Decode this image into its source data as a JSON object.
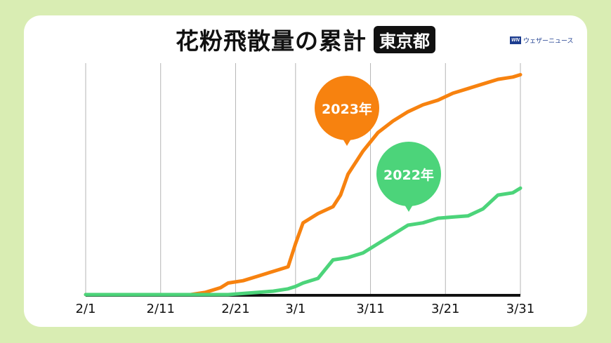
{
  "title": "花粉飛散量の累計",
  "region_badge": "東京都",
  "logo": {
    "mark": "WN",
    "text": "ウェザーニュース"
  },
  "colors": {
    "background": "#d9edb3",
    "series_2023": "#f7820f",
    "series_2022": "#4cd47a",
    "axis": "#111111",
    "grid": "#b5b5b5"
  },
  "labels": {
    "series_2023": "2023年",
    "series_2022": "2022年"
  },
  "chart_data": {
    "type": "line",
    "title": "花粉飛散量の累計 東京都",
    "xlabel": "",
    "ylabel": "",
    "y_unit": "relative cumulative amount (0-100, no axis shown)",
    "grid": "vertical only",
    "legend": "callout bubbles",
    "x_ticks": [
      "2/1",
      "2/11",
      "2/21",
      "3/1",
      "3/11",
      "3/21",
      "3/31"
    ],
    "x": [
      "2/1",
      "2/5",
      "2/10",
      "2/15",
      "2/17",
      "2/19",
      "2/20",
      "2/22",
      "2/24",
      "2/26",
      "2/28",
      "3/1",
      "3/2",
      "3/4",
      "3/6",
      "3/7",
      "3/8",
      "3/10",
      "3/12",
      "3/14",
      "3/16",
      "3/18",
      "3/20",
      "3/22",
      "3/24",
      "3/26",
      "3/28",
      "3/30",
      "3/31"
    ],
    "series": [
      {
        "name": "2023年",
        "color": "#f7820f",
        "values": [
          0,
          0,
          0,
          0,
          1,
          3,
          5,
          6,
          8,
          10,
          12,
          22,
          31,
          35,
          38,
          43,
          52,
          62,
          70,
          75,
          79,
          82,
          84,
          87,
          89,
          91,
          93,
          94,
          95
        ]
      },
      {
        "name": "2022年",
        "color": "#4cd47a",
        "values": [
          0,
          0,
          0,
          0,
          0,
          0,
          0,
          0.5,
          1,
          1.5,
          2.5,
          3.5,
          5,
          7,
          15,
          15.5,
          16,
          18,
          22,
          26,
          30,
          31,
          33,
          33.5,
          34,
          37,
          43,
          44,
          46
        ]
      }
    ]
  }
}
